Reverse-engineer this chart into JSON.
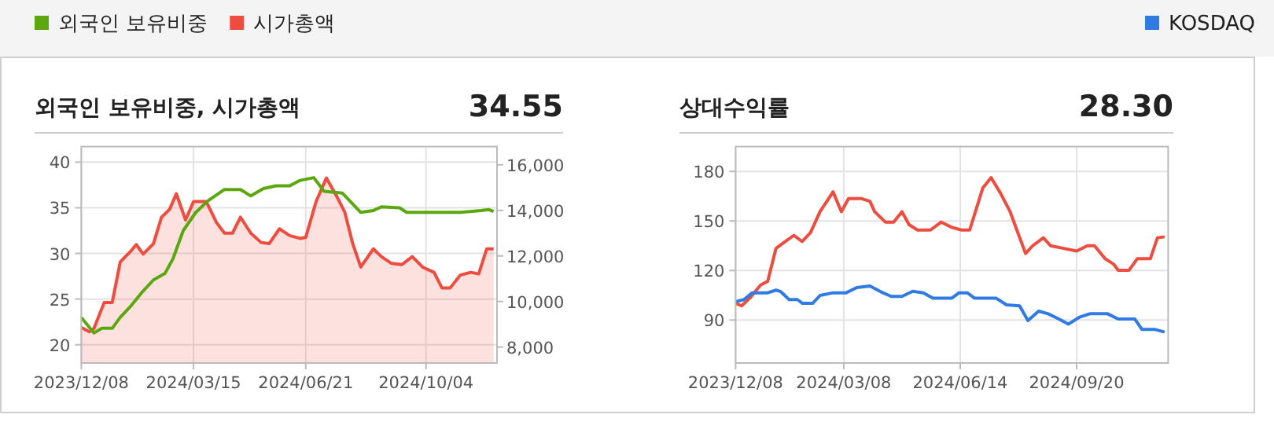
{
  "chart_data": [
    {
      "type": "line",
      "title": "외국인 보유비중, 시가총액",
      "annotations": [
        "34.55"
      ],
      "legend": "top left",
      "grid": true,
      "xlim": [
        "2023-12-08",
        "2024-12-05"
      ],
      "xticks": [
        {
          "value": "2023-12-08",
          "label": "2023/12/08"
        },
        {
          "value": "2024-03-15",
          "label": "2024/03/15"
        },
        {
          "value": "2024-06-21",
          "label": "2024/06/21"
        },
        {
          "value": "2024-10-04",
          "label": "2024/10/04"
        }
      ],
      "ylim": [
        18,
        41.7
      ],
      "yticks": [
        20,
        25,
        30,
        35,
        40
      ],
      "y2lim": [
        7300,
        16800
      ],
      "y2ticks": [
        {
          "value": 8000,
          "label": "8,000"
        },
        {
          "value": 10000,
          "label": "10,000"
        },
        {
          "value": 12000,
          "label": "12,000"
        },
        {
          "value": 14000,
          "label": "14,000"
        },
        {
          "value": 16000,
          "label": "16,000"
        }
      ],
      "series": [
        {
          "name": "시가총액",
          "type": "area",
          "axis": "y2",
          "color": "#ee4c3f",
          "x": [
            "2023-12-08",
            "2023-12-15",
            "2023-12-19",
            "2023-12-28",
            "2024-01-04",
            "2024-01-11",
            "2024-01-20",
            "2024-01-25",
            "2024-01-31",
            "2024-02-09",
            "2024-02-16",
            "2024-02-23",
            "2024-02-29",
            "2024-03-08",
            "2024-03-15",
            "2024-03-26",
            "2024-04-04",
            "2024-04-11",
            "2024-04-18",
            "2024-04-25",
            "2024-05-04",
            "2024-05-13",
            "2024-05-20",
            "2024-05-29",
            "2024-06-07",
            "2024-06-16",
            "2024-06-21",
            "2024-06-30",
            "2024-07-09",
            "2024-07-18",
            "2024-07-25",
            "2024-08-01",
            "2024-08-08",
            "2024-08-19",
            "2024-08-26",
            "2024-09-04",
            "2024-09-13",
            "2024-09-22",
            "2024-10-01",
            "2024-10-11",
            "2024-10-18",
            "2024-10-25",
            "2024-11-03",
            "2024-11-12",
            "2024-11-19",
            "2024-11-26",
            "2024-12-02"
          ],
          "values": [
            8860,
            8670,
            8810,
            9960,
            9960,
            11740,
            12200,
            12500,
            12080,
            12540,
            13700,
            14040,
            14730,
            13580,
            14390,
            14390,
            13470,
            13000,
            13000,
            13700,
            13000,
            12590,
            12540,
            13190,
            12890,
            12770,
            12820,
            14390,
            15420,
            14620,
            13930,
            12540,
            11510,
            12310,
            11970,
            11670,
            11620,
            11970,
            11510,
            11280,
            10590,
            10590,
            11160,
            11280,
            11210,
            12310,
            12310
          ]
        },
        {
          "name": "외국인 보유비중",
          "color": "#5aa70e",
          "x": [
            "2023-12-08",
            "2023-12-19",
            "2023-12-26",
            "2024-01-04",
            "2024-01-11",
            "2024-01-20",
            "2024-01-29",
            "2024-02-09",
            "2024-02-19",
            "2024-02-26",
            "2024-03-06",
            "2024-03-17",
            "2024-03-28",
            "2024-04-11",
            "2024-04-25",
            "2024-05-04",
            "2024-05-15",
            "2024-05-26",
            "2024-06-07",
            "2024-06-16",
            "2024-06-28",
            "2024-07-07",
            "2024-07-23",
            "2024-08-08",
            "2024-08-19",
            "2024-08-26",
            "2024-09-11",
            "2024-09-17",
            "2024-10-11",
            "2024-11-03",
            "2024-11-21",
            "2024-11-28",
            "2024-12-02"
          ],
          "values": [
            23.0,
            21.3,
            21.8,
            21.8,
            23.0,
            24.2,
            25.6,
            27.1,
            27.8,
            29.4,
            32.5,
            34.5,
            35.8,
            37.0,
            37.0,
            36.3,
            37.1,
            37.4,
            37.4,
            38.0,
            38.3,
            36.8,
            36.6,
            34.5,
            34.7,
            35.1,
            35.0,
            34.5,
            34.5,
            34.5,
            34.7,
            34.8,
            34.6
          ]
        }
      ]
    },
    {
      "type": "line",
      "title": "상대수익률",
      "annotations": [
        "28.30"
      ],
      "legend": "top right",
      "grid": true,
      "xlim": [
        "2023-12-08",
        "2024-12-06"
      ],
      "xticks": [
        {
          "value": "2023-12-08",
          "label": "2023/12/08"
        },
        {
          "value": "2024-03-08",
          "label": "2024/03/08"
        },
        {
          "value": "2024-06-14",
          "label": "2024/06/14"
        },
        {
          "value": "2024-09-20",
          "label": "2024/09/20"
        }
      ],
      "ylim": [
        64,
        195
      ],
      "yticks": [
        90,
        120,
        150,
        180
      ],
      "series": [
        {
          "color": "#ee4c3f",
          "x": [
            "2023-12-08",
            "2023-12-13",
            "2023-12-20",
            "2023-12-29",
            "2024-01-04",
            "2024-01-11",
            "2024-01-17",
            "2024-01-26",
            "2024-02-02",
            "2024-02-09",
            "2024-02-17",
            "2024-02-28",
            "2024-03-06",
            "2024-03-12",
            "2024-03-23",
            "2024-03-30",
            "2024-04-03",
            "2024-04-12",
            "2024-04-19",
            "2024-04-26",
            "2024-05-02",
            "2024-05-09",
            "2024-05-20",
            "2024-05-29",
            "2024-06-07",
            "2024-06-15",
            "2024-06-22",
            "2024-07-03",
            "2024-07-10",
            "2024-07-18",
            "2024-07-26",
            "2024-08-08",
            "2024-08-14",
            "2024-08-23",
            "2024-08-29",
            "2024-09-09",
            "2024-09-20",
            "2024-09-29",
            "2024-10-05",
            "2024-10-14",
            "2024-10-21",
            "2024-10-25",
            "2024-11-03",
            "2024-11-10",
            "2024-11-21",
            "2024-11-27",
            "2024-12-03"
          ],
          "values": [
            100.2,
            98.6,
            103.3,
            111.2,
            113.5,
            133.4,
            136.6,
            141.3,
            137.5,
            142.9,
            155.6,
            167.6,
            155.6,
            163.5,
            163.5,
            161.9,
            155.6,
            149.3,
            149.3,
            155.6,
            147.7,
            144.5,
            144.5,
            149.3,
            146.1,
            144.5,
            144.5,
            169.9,
            176.2,
            166.7,
            155.6,
            130.3,
            135.0,
            139.8,
            135.0,
            133.4,
            131.8,
            135.0,
            135.0,
            127.1,
            123.9,
            120.1,
            120.1,
            127.1,
            127.1,
            139.8,
            140.4
          ]
        },
        {
          "name": "KOSDAQ",
          "color": "#2f7ae5",
          "x": [
            "2023-12-08",
            "2023-12-15",
            "2023-12-22",
            "2023-12-29",
            "2024-01-04",
            "2024-01-11",
            "2024-01-15",
            "2024-01-22",
            "2024-01-29",
            "2024-02-02",
            "2024-02-11",
            "2024-02-17",
            "2024-02-28",
            "2024-03-10",
            "2024-03-19",
            "2024-03-30",
            "2024-04-10",
            "2024-04-17",
            "2024-04-26",
            "2024-05-05",
            "2024-05-14",
            "2024-05-22",
            "2024-06-07",
            "2024-06-13",
            "2024-06-20",
            "2024-06-26",
            "2024-07-14",
            "2024-07-23",
            "2024-08-03",
            "2024-08-10",
            "2024-08-19",
            "2024-08-27",
            "2024-09-05",
            "2024-09-13",
            "2024-09-22",
            "2024-10-01",
            "2024-10-16",
            "2024-10-25",
            "2024-11-08",
            "2024-11-14",
            "2024-11-25",
            "2024-12-03"
          ],
          "values": [
            101.1,
            102.4,
            106.5,
            106.5,
            106.5,
            108.1,
            107.2,
            102.4,
            102.4,
            100.2,
            100.2,
            104.9,
            106.5,
            106.5,
            109.7,
            110.6,
            106.5,
            104.3,
            104.3,
            107.4,
            106.5,
            103.3,
            103.3,
            106.5,
            106.5,
            103.3,
            103.3,
            99.2,
            98.6,
            89.7,
            95.4,
            93.8,
            90.6,
            87.5,
            91.6,
            93.8,
            93.8,
            90.6,
            90.6,
            84.3,
            84.3,
            82.7
          ]
        }
      ]
    }
  ]
}
